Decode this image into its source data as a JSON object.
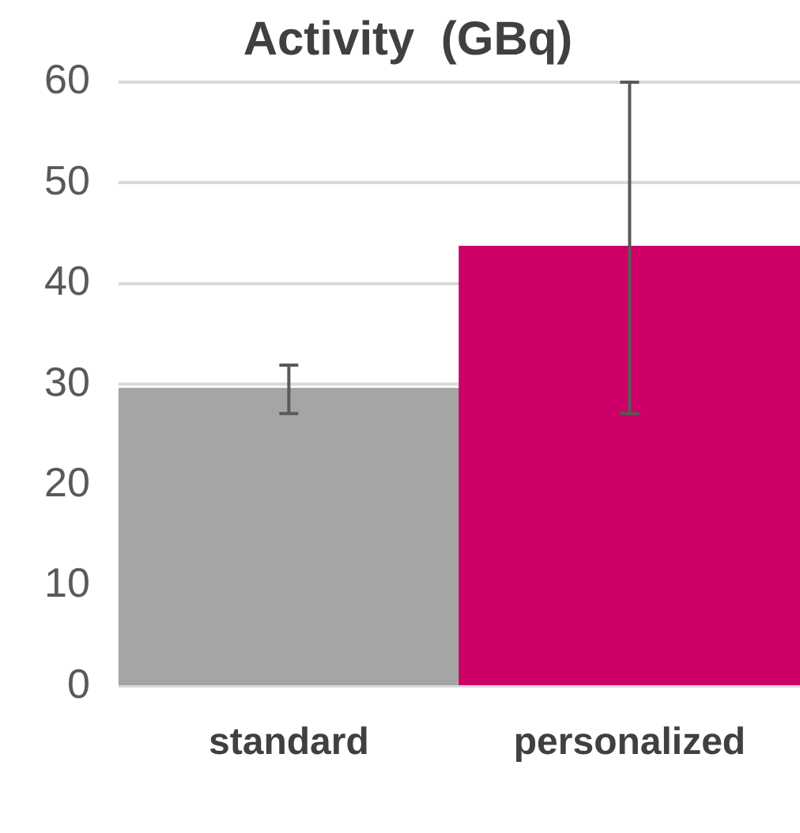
{
  "chart_data": {
    "type": "bar",
    "title": "Activity  (GBq)",
    "categories": [
      "standard",
      "personalized"
    ],
    "values": [
      29.6,
      43.7
    ],
    "colors": [
      "#a5a5a5",
      "#cc0066"
    ],
    "errors": [
      [
        27.1,
        31.9
      ],
      [
        27.1,
        60
      ]
    ],
    "ylim": [
      0,
      60
    ],
    "yticks": [
      0,
      10,
      20,
      30,
      40,
      50,
      60
    ],
    "grid": "y",
    "legend": false
  }
}
